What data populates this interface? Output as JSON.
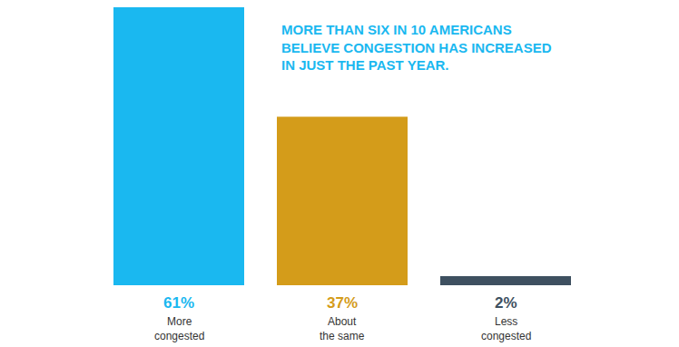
{
  "chart_data": {
    "type": "bar",
    "title": "MORE THAN SIX IN 10 AMERICANS BELIEVE CONGESTION HAS INCREASED IN JUST THE PAST YEAR.",
    "categories": [
      "More congested",
      "About the same",
      "Less congested"
    ],
    "values": [
      61,
      37,
      2
    ],
    "value_labels": [
      "61%",
      "37%",
      "2%"
    ],
    "colors": [
      "#1ab8f0",
      "#d49c1a",
      "#3e5060"
    ],
    "ylim": [
      0,
      61
    ],
    "data_labels": true,
    "tick_labels": false,
    "grid": false
  }
}
